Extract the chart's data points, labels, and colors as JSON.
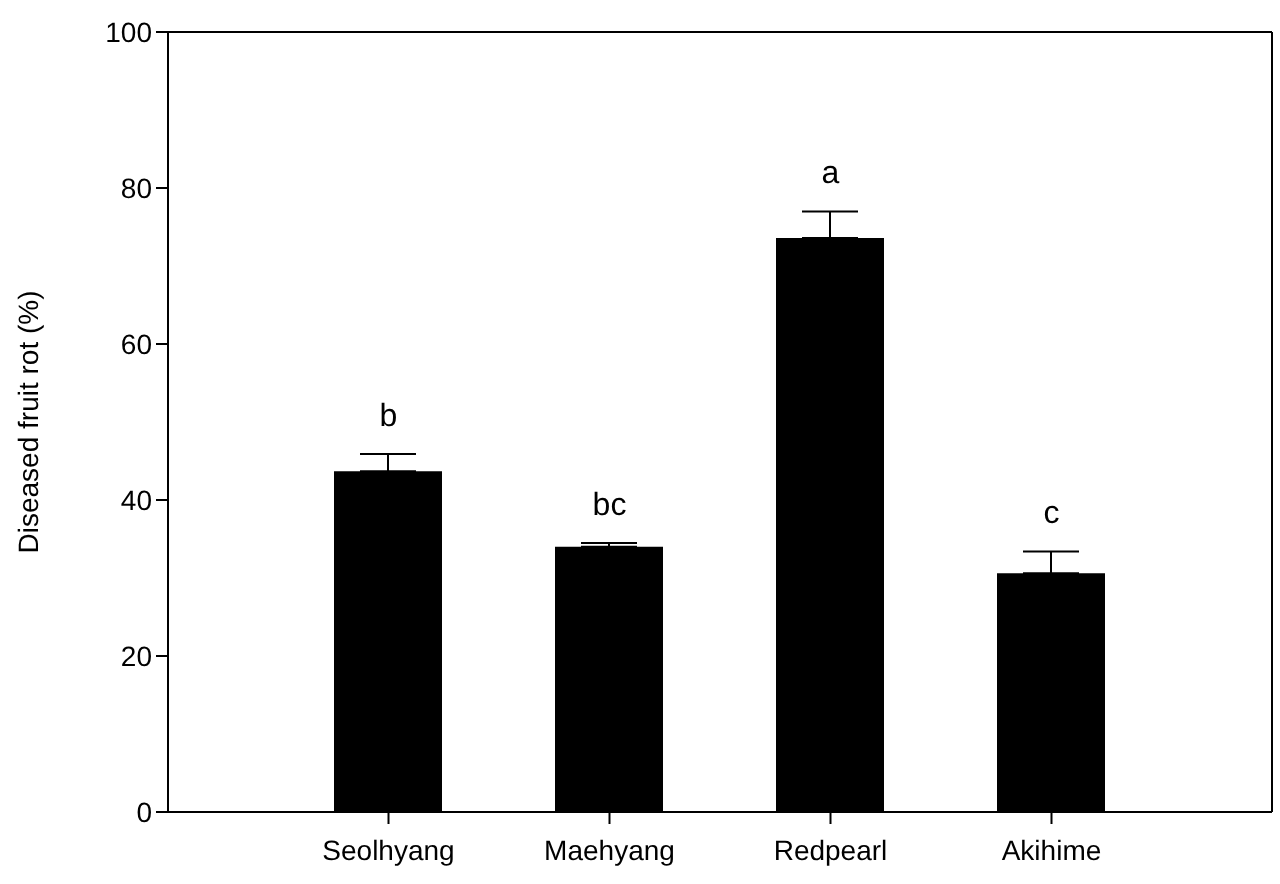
{
  "chart_data": {
    "type": "bar",
    "ylabel": "Diseased fruit rot (%)",
    "categories": [
      "Seolhyang",
      "Maehyang",
      "Redpearl",
      "Akihime"
    ],
    "values": [
      43.7,
      34.0,
      73.6,
      30.6
    ],
    "errors": [
      2.2,
      0.5,
      3.4,
      2.8
    ],
    "color": "#000000",
    "ylim": [
      0,
      100
    ],
    "yticks": [
      0,
      20,
      40,
      60,
      80,
      100
    ],
    "grid": false,
    "legend": false,
    "annotations": [
      "b",
      "bc",
      "a",
      "c"
    ]
  }
}
